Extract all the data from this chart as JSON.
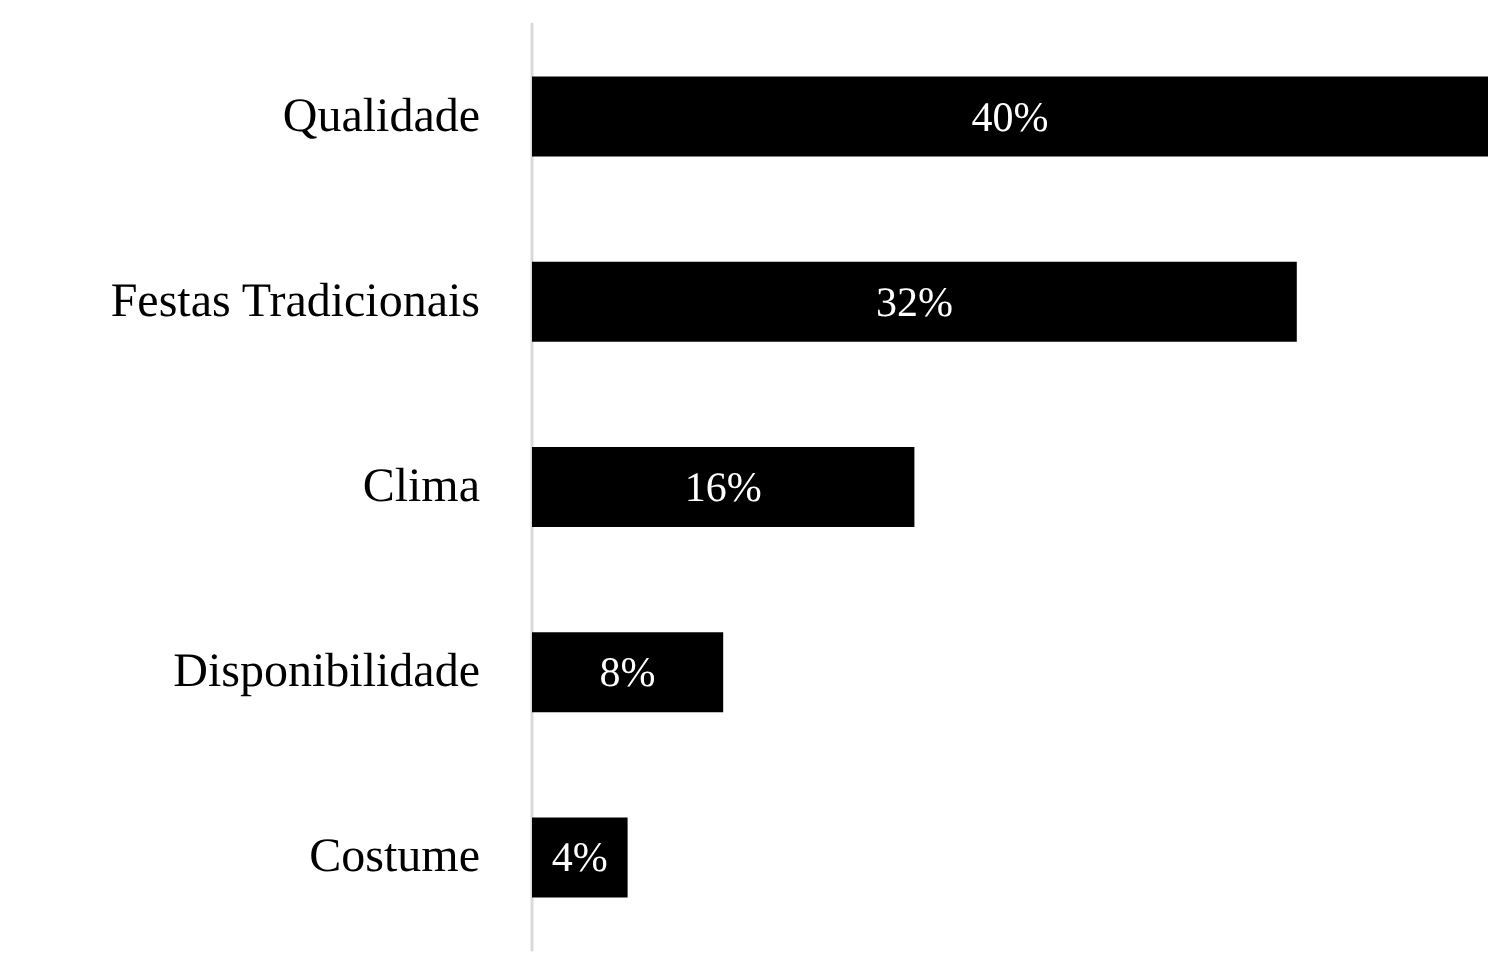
{
  "chart_data": {
    "type": "bar",
    "orientation": "horizontal",
    "categories": [
      "Qualidade",
      "Festas Tradicionais",
      "Clima",
      "Disponibilidade",
      "Costume"
    ],
    "values": [
      40,
      32,
      16,
      8,
      4
    ],
    "color": "#000000",
    "value_labels": [
      "40%",
      "32%",
      "16%",
      "8%",
      "4%"
    ]
  }
}
